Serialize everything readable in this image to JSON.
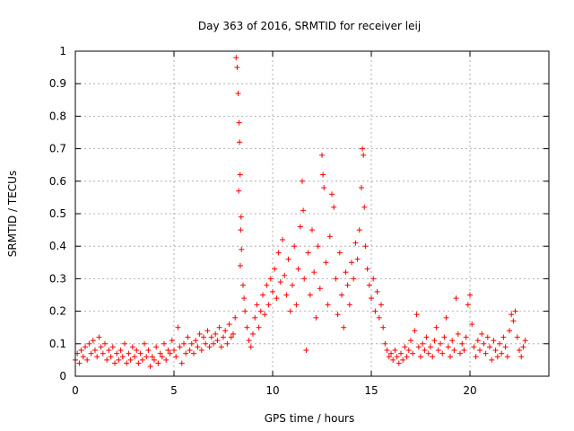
{
  "chart_data": {
    "type": "scatter",
    "title": "Day 363 of 2016, SRMTID for receiver leij",
    "xlabel": "GPS time / hours",
    "ylabel": "SRMTID / TECUs",
    "xlim": [
      0,
      24
    ],
    "ylim": [
      0,
      1
    ],
    "xticks": [
      "0",
      "5",
      "10",
      "15",
      "20"
    ],
    "yticks": [
      "0",
      "0.1",
      "0.2",
      "0.3",
      "0.4",
      "0.5",
      "0.6",
      "0.7",
      "0.8",
      "0.9",
      "1"
    ],
    "grid": true,
    "marker": "plus",
    "series": [
      {
        "name": "SRMTID",
        "color": "#ff0000",
        "points": [
          [
            0.0,
            0.05
          ],
          [
            0.1,
            0.07
          ],
          [
            0.2,
            0.04
          ],
          [
            0.3,
            0.08
          ],
          [
            0.4,
            0.06
          ],
          [
            0.5,
            0.09
          ],
          [
            0.6,
            0.05
          ],
          [
            0.7,
            0.1
          ],
          [
            0.8,
            0.07
          ],
          [
            0.9,
            0.11
          ],
          [
            1.0,
            0.08
          ],
          [
            1.1,
            0.06
          ],
          [
            1.2,
            0.12
          ],
          [
            1.3,
            0.09
          ],
          [
            1.4,
            0.07
          ],
          [
            1.5,
            0.1
          ],
          [
            1.6,
            0.05
          ],
          [
            1.7,
            0.08
          ],
          [
            1.8,
            0.06
          ],
          [
            1.9,
            0.09
          ],
          [
            2.0,
            0.04
          ],
          [
            2.1,
            0.07
          ],
          [
            2.2,
            0.05
          ],
          [
            2.3,
            0.08
          ],
          [
            2.4,
            0.06
          ],
          [
            2.5,
            0.1
          ],
          [
            2.6,
            0.04
          ],
          [
            2.7,
            0.07
          ],
          [
            2.8,
            0.05
          ],
          [
            2.9,
            0.09
          ],
          [
            3.0,
            0.06
          ],
          [
            3.1,
            0.08
          ],
          [
            3.2,
            0.04
          ],
          [
            3.3,
            0.07
          ],
          [
            3.4,
            0.05
          ],
          [
            3.5,
            0.1
          ],
          [
            3.6,
            0.06
          ],
          [
            3.7,
            0.08
          ],
          [
            3.8,
            0.03
          ],
          [
            3.9,
            0.06
          ],
          [
            4.0,
            0.05
          ],
          [
            4.1,
            0.09
          ],
          [
            4.2,
            0.04
          ],
          [
            4.3,
            0.07
          ],
          [
            4.4,
            0.06
          ],
          [
            4.5,
            0.1
          ],
          [
            4.6,
            0.05
          ],
          [
            4.7,
            0.08
          ],
          [
            4.8,
            0.07
          ],
          [
            4.9,
            0.11
          ],
          [
            5.0,
            0.08
          ],
          [
            5.1,
            0.06
          ],
          [
            5.2,
            0.15
          ],
          [
            5.3,
            0.09
          ],
          [
            5.4,
            0.04
          ],
          [
            5.5,
            0.1
          ],
          [
            5.6,
            0.07
          ],
          [
            5.7,
            0.12
          ],
          [
            5.8,
            0.08
          ],
          [
            5.9,
            0.1
          ],
          [
            6.0,
            0.07
          ],
          [
            6.1,
            0.11
          ],
          [
            6.2,
            0.09
          ],
          [
            6.3,
            0.13
          ],
          [
            6.4,
            0.08
          ],
          [
            6.5,
            0.12
          ],
          [
            6.6,
            0.1
          ],
          [
            6.7,
            0.14
          ],
          [
            6.8,
            0.09
          ],
          [
            6.9,
            0.12
          ],
          [
            7.0,
            0.1
          ],
          [
            7.1,
            0.13
          ],
          [
            7.2,
            0.11
          ],
          [
            7.3,
            0.15
          ],
          [
            7.4,
            0.09
          ],
          [
            7.5,
            0.12
          ],
          [
            7.6,
            0.14
          ],
          [
            7.7,
            0.1
          ],
          [
            7.8,
            0.16
          ],
          [
            7.9,
            0.12
          ],
          [
            8.0,
            0.13
          ],
          [
            8.1,
            0.18
          ],
          [
            8.15,
            0.98
          ],
          [
            8.2,
            0.95
          ],
          [
            8.25,
            0.87
          ],
          [
            8.3,
            0.78
          ],
          [
            8.32,
            0.72
          ],
          [
            8.35,
            0.62
          ],
          [
            8.28,
            0.57
          ],
          [
            8.4,
            0.49
          ],
          [
            8.38,
            0.45
          ],
          [
            8.42,
            0.39
          ],
          [
            8.36,
            0.34
          ],
          [
            8.5,
            0.28
          ],
          [
            8.55,
            0.24
          ],
          [
            8.6,
            0.2
          ],
          [
            8.7,
            0.15
          ],
          [
            8.8,
            0.11
          ],
          [
            8.9,
            0.09
          ],
          [
            9.0,
            0.13
          ],
          [
            9.1,
            0.18
          ],
          [
            9.2,
            0.22
          ],
          [
            9.3,
            0.15
          ],
          [
            9.4,
            0.2
          ],
          [
            9.5,
            0.25
          ],
          [
            9.6,
            0.19
          ],
          [
            9.7,
            0.28
          ],
          [
            9.8,
            0.22
          ],
          [
            9.9,
            0.3
          ],
          [
            10.0,
            0.26
          ],
          [
            10.1,
            0.33
          ],
          [
            10.2,
            0.24
          ],
          [
            10.3,
            0.38
          ],
          [
            10.4,
            0.29
          ],
          [
            10.5,
            0.42
          ],
          [
            10.6,
            0.31
          ],
          [
            10.7,
            0.25
          ],
          [
            10.8,
            0.36
          ],
          [
            10.9,
            0.2
          ],
          [
            11.0,
            0.28
          ],
          [
            11.1,
            0.4
          ],
          [
            11.2,
            0.22
          ],
          [
            11.3,
            0.33
          ],
          [
            11.4,
            0.46
          ],
          [
            11.5,
            0.6
          ],
          [
            11.55,
            0.51
          ],
          [
            11.6,
            0.3
          ],
          [
            11.7,
            0.08
          ],
          [
            11.8,
            0.38
          ],
          [
            11.9,
            0.25
          ],
          [
            12.0,
            0.45
          ],
          [
            12.1,
            0.32
          ],
          [
            12.2,
            0.18
          ],
          [
            12.3,
            0.4
          ],
          [
            12.4,
            0.27
          ],
          [
            12.5,
            0.68
          ],
          [
            12.55,
            0.62
          ],
          [
            12.6,
            0.58
          ],
          [
            12.7,
            0.35
          ],
          [
            12.8,
            0.22
          ],
          [
            12.9,
            0.43
          ],
          [
            13.0,
            0.56
          ],
          [
            13.1,
            0.52
          ],
          [
            13.2,
            0.3
          ],
          [
            13.3,
            0.19
          ],
          [
            13.4,
            0.38
          ],
          [
            13.5,
            0.25
          ],
          [
            13.6,
            0.15
          ],
          [
            13.7,
            0.32
          ],
          [
            13.8,
            0.28
          ],
          [
            13.9,
            0.22
          ],
          [
            14.0,
            0.35
          ],
          [
            14.1,
            0.3
          ],
          [
            14.2,
            0.41
          ],
          [
            14.3,
            0.36
          ],
          [
            14.4,
            0.45
          ],
          [
            14.5,
            0.58
          ],
          [
            14.55,
            0.7
          ],
          [
            14.6,
            0.68
          ],
          [
            14.65,
            0.52
          ],
          [
            14.7,
            0.4
          ],
          [
            14.8,
            0.33
          ],
          [
            14.9,
            0.28
          ],
          [
            15.0,
            0.24
          ],
          [
            15.1,
            0.3
          ],
          [
            15.2,
            0.2
          ],
          [
            15.3,
            0.26
          ],
          [
            15.4,
            0.18
          ],
          [
            15.5,
            0.22
          ],
          [
            15.6,
            0.15
          ],
          [
            15.7,
            0.1
          ],
          [
            15.8,
            0.08
          ],
          [
            15.9,
            0.06
          ],
          [
            16.0,
            0.07
          ],
          [
            16.1,
            0.05
          ],
          [
            16.2,
            0.08
          ],
          [
            16.3,
            0.06
          ],
          [
            16.4,
            0.04
          ],
          [
            16.5,
            0.07
          ],
          [
            16.6,
            0.05
          ],
          [
            16.7,
            0.09
          ],
          [
            16.8,
            0.06
          ],
          [
            16.9,
            0.08
          ],
          [
            17.0,
            0.11
          ],
          [
            17.1,
            0.07
          ],
          [
            17.2,
            0.14
          ],
          [
            17.3,
            0.19
          ],
          [
            17.4,
            0.09
          ],
          [
            17.5,
            0.06
          ],
          [
            17.6,
            0.1
          ],
          [
            17.7,
            0.08
          ],
          [
            17.8,
            0.12
          ],
          [
            17.9,
            0.07
          ],
          [
            18.0,
            0.09
          ],
          [
            18.1,
            0.06
          ],
          [
            18.2,
            0.11
          ],
          [
            18.3,
            0.15
          ],
          [
            18.4,
            0.08
          ],
          [
            18.5,
            0.1
          ],
          [
            18.6,
            0.07
          ],
          [
            18.7,
            0.12
          ],
          [
            18.8,
            0.18
          ],
          [
            18.9,
            0.09
          ],
          [
            19.0,
            0.06
          ],
          [
            19.1,
            0.11
          ],
          [
            19.2,
            0.08
          ],
          [
            19.3,
            0.24
          ],
          [
            19.4,
            0.13
          ],
          [
            19.5,
            0.07
          ],
          [
            19.6,
            0.1
          ],
          [
            19.7,
            0.08
          ],
          [
            19.8,
            0.12
          ],
          [
            19.9,
            0.22
          ],
          [
            20.0,
            0.25
          ],
          [
            20.1,
            0.16
          ],
          [
            20.2,
            0.09
          ],
          [
            20.3,
            0.06
          ],
          [
            20.4,
            0.11
          ],
          [
            20.5,
            0.08
          ],
          [
            20.6,
            0.13
          ],
          [
            20.7,
            0.1
          ],
          [
            20.8,
            0.07
          ],
          [
            20.9,
            0.12
          ],
          [
            21.0,
            0.09
          ],
          [
            21.1,
            0.05
          ],
          [
            21.2,
            0.11
          ],
          [
            21.3,
            0.08
          ],
          [
            21.4,
            0.06
          ],
          [
            21.5,
            0.1
          ],
          [
            21.6,
            0.07
          ],
          [
            21.7,
            0.12
          ],
          [
            21.8,
            0.09
          ],
          [
            21.9,
            0.06
          ],
          [
            22.0,
            0.14
          ],
          [
            22.1,
            0.19
          ],
          [
            22.2,
            0.17
          ],
          [
            22.3,
            0.2
          ],
          [
            22.4,
            0.12
          ],
          [
            22.5,
            0.08
          ],
          [
            22.6,
            0.06
          ],
          [
            22.7,
            0.09
          ],
          [
            22.8,
            0.11
          ]
        ]
      }
    ]
  }
}
